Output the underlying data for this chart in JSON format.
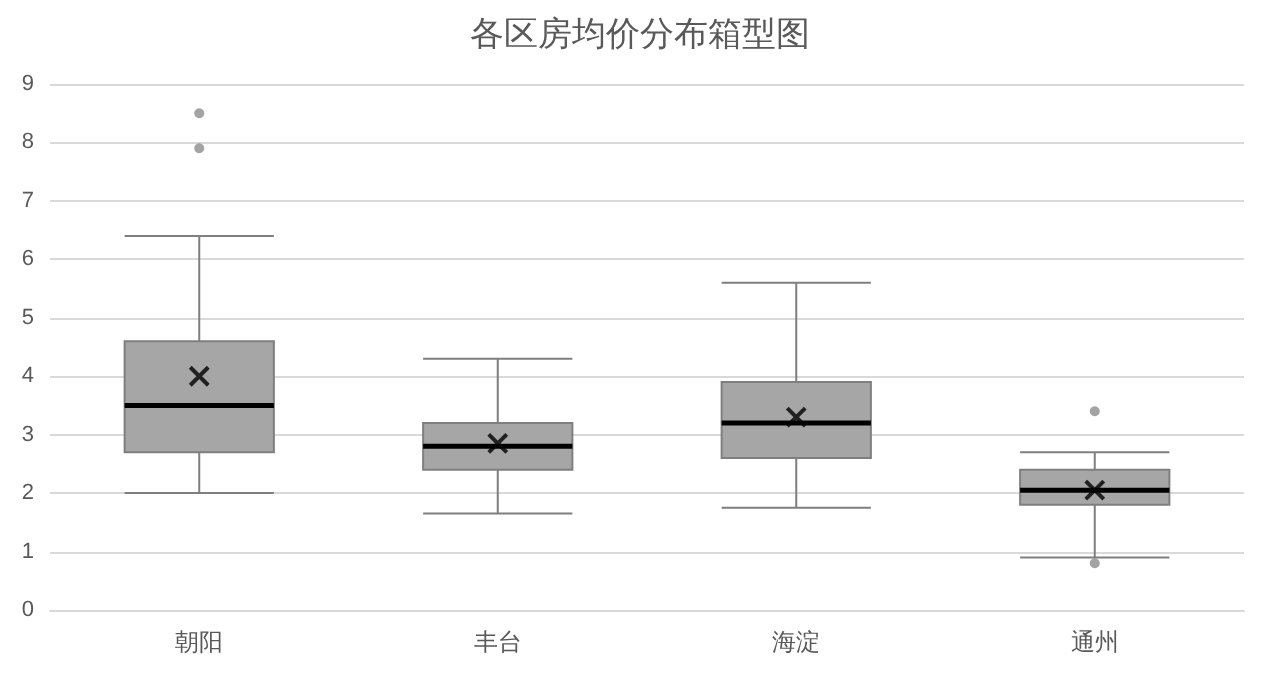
{
  "chart_data": {
    "type": "box",
    "title": "各区房均价分布箱型图",
    "categories": [
      "朝阳",
      "丰台",
      "海淀",
      "通州"
    ],
    "series": [
      {
        "color": "#a6a6a6",
        "boxes": [
          {
            "low": 2.0,
            "q1": 2.7,
            "median": 3.5,
            "q3": 4.6,
            "high": 6.4,
            "mean": 4.0,
            "outliers": [
              7.9,
              8.5
            ]
          },
          {
            "low": 1.65,
            "q1": 2.4,
            "median": 2.8,
            "q3": 3.2,
            "high": 4.3,
            "mean": 2.85
          },
          {
            "low": 1.75,
            "q1": 2.6,
            "median": 3.2,
            "q3": 3.9,
            "high": 5.6,
            "mean": 3.3
          },
          {
            "low": 0.9,
            "q1": 1.8,
            "median": 2.05,
            "q3": 2.4,
            "high": 2.7,
            "mean": 2.05,
            "outliers": [
              0.8,
              3.4
            ]
          }
        ]
      }
    ],
    "ylim": [
      0,
      9
    ],
    "yticks": [
      0,
      1,
      2,
      3,
      4,
      5,
      6,
      7,
      8,
      9
    ],
    "grid": "y"
  }
}
